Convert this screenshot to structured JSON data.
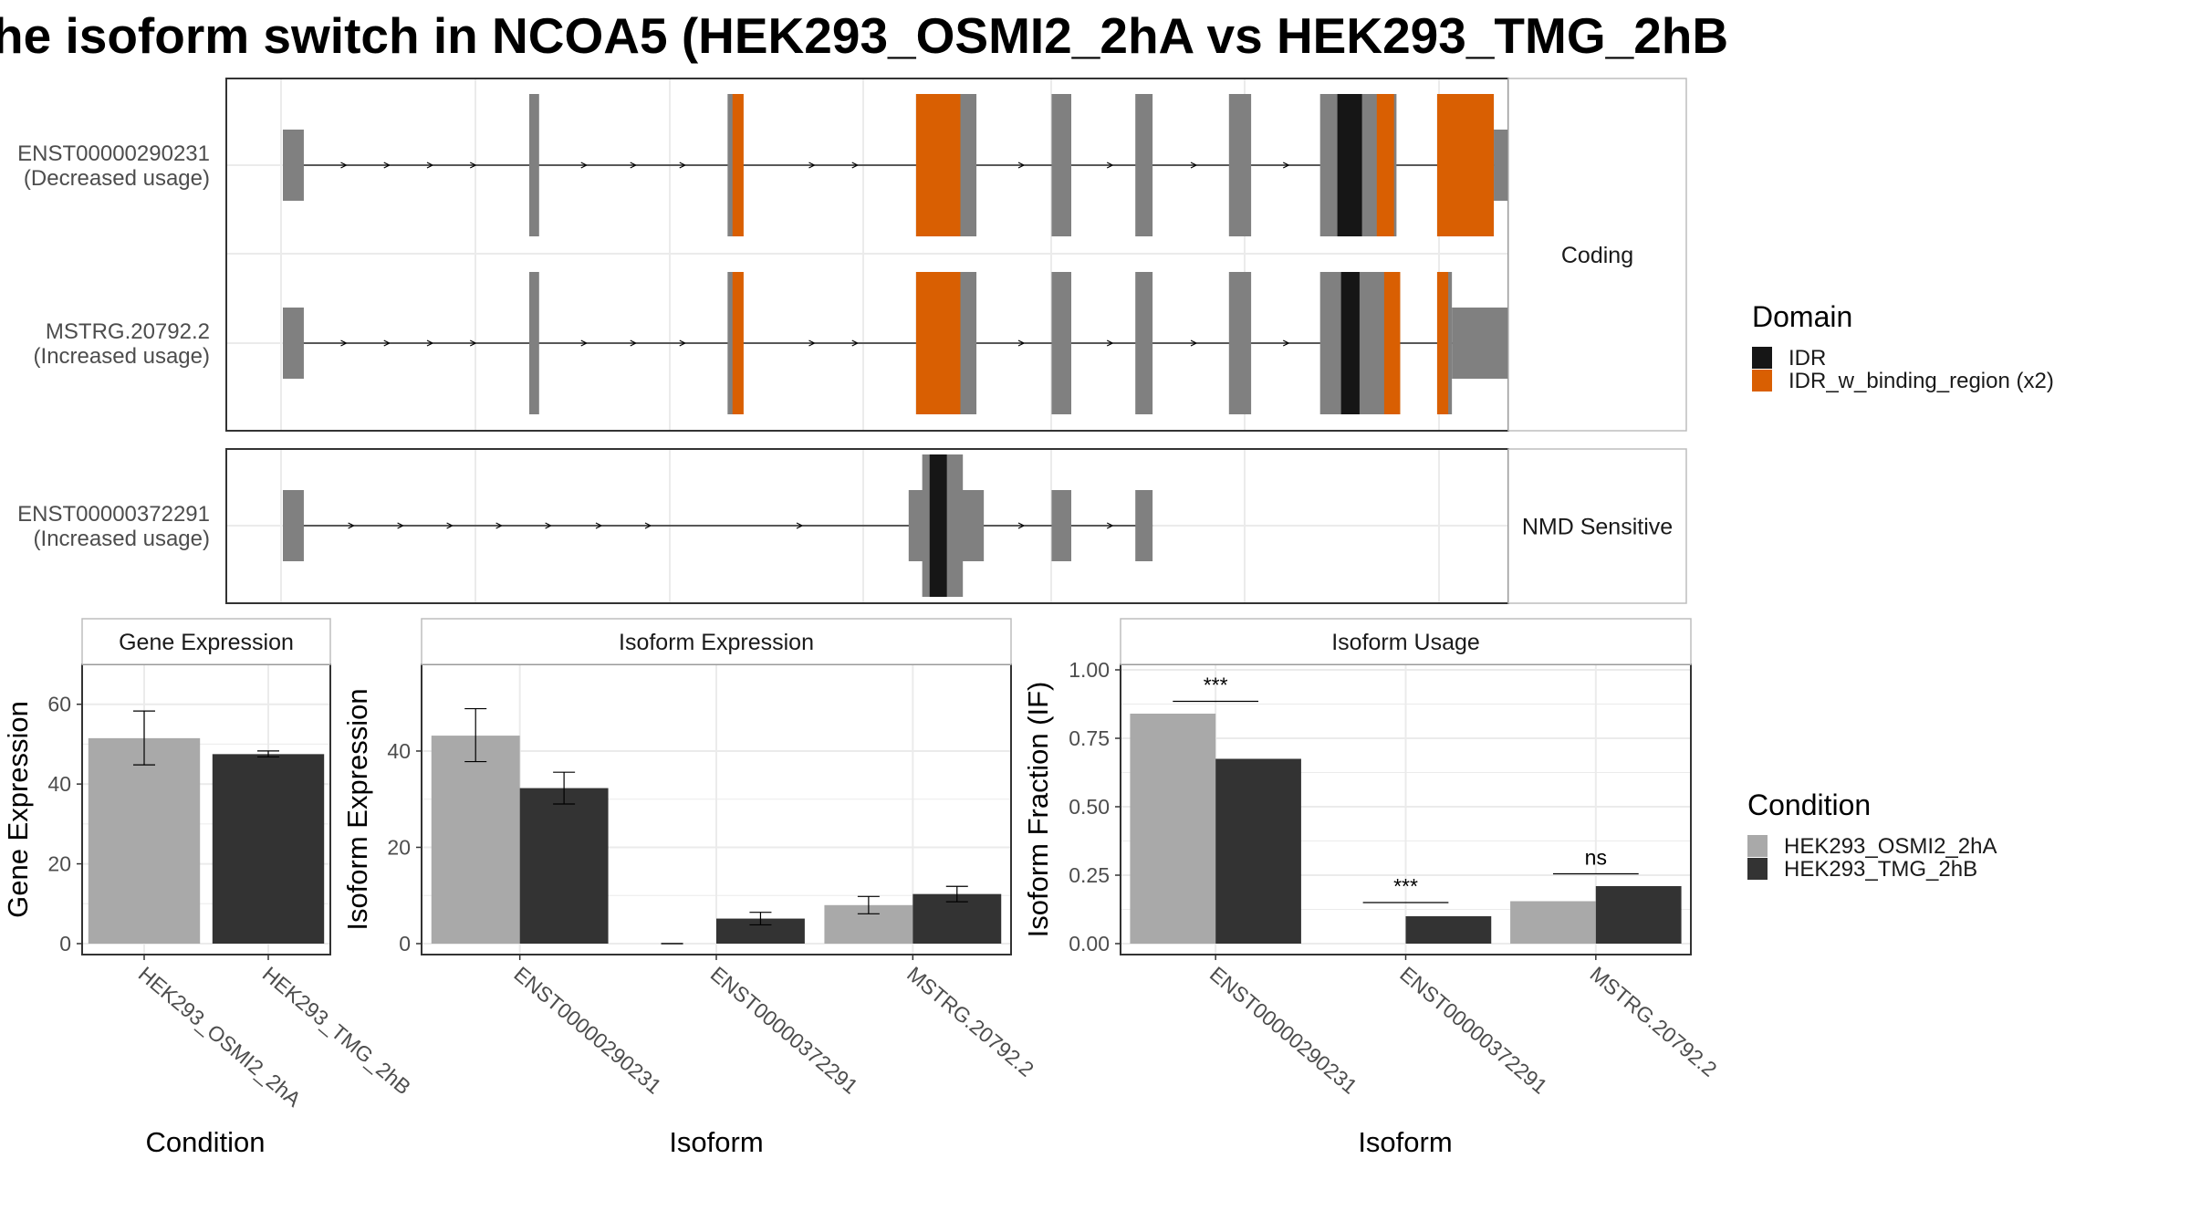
{
  "title": "he isoform switch in NCOA5 (HEK293_OSMI2_2hA vs HEK293_TMG_2hB",
  "colors": {
    "exon": "#808080",
    "idr": "#161616",
    "idr_binding": "#d95f02",
    "cond_a": "#a9a9a9",
    "cond_b": "#333333",
    "panel_border": "#333333",
    "grid": "#ebebeb",
    "strip_bg": "#ffffff"
  },
  "structure": {
    "facets": [
      {
        "label": "Coding",
        "transcripts": [
          {
            "name": "ENST00000290231",
            "usage": "(Decreased usage)",
            "tall": [
              [
                200,
                208
              ],
              [
                361,
                372
              ],
              [
                514,
                563
              ],
              [
                624,
                640
              ],
              [
                692,
                706
              ],
              [
                768,
                786
              ],
              [
                842,
                904
              ],
              [
                937,
                983
              ]
            ],
            "short": [
              [
                0,
                17
              ],
              [
                983,
                1052
              ]
            ],
            "domains": [
              {
                "type": "idr_binding",
                "start": 365,
                "end": 374
              },
              {
                "type": "idr_binding",
                "start": 514,
                "end": 550
              },
              {
                "type": "idr",
                "start": 856,
                "end": 876
              },
              {
                "type": "idr_binding",
                "start": 888,
                "end": 902
              },
              {
                "type": "idr_binding",
                "start": 937,
                "end": 983
              }
            ],
            "arrows": [
              50,
              85,
              120,
              155,
              245,
              285,
              325,
              430,
              465,
              600,
              672,
              740,
              815
            ]
          },
          {
            "name": "MSTRG.20792.2",
            "usage": "(Increased usage)",
            "tall": [
              [
                200,
                208
              ],
              [
                361,
                372
              ],
              [
                514,
                563
              ],
              [
                624,
                640
              ],
              [
                692,
                706
              ],
              [
                768,
                786
              ],
              [
                842,
                907
              ],
              [
                937,
                949
              ]
            ],
            "short": [
              [
                0,
                17
              ],
              [
                949,
                1030
              ]
            ],
            "domains": [
              {
                "type": "idr_binding",
                "start": 365,
                "end": 374
              },
              {
                "type": "idr_binding",
                "start": 514,
                "end": 550
              },
              {
                "type": "idr",
                "start": 859,
                "end": 874
              },
              {
                "type": "idr_binding",
                "start": 894,
                "end": 907
              },
              {
                "type": "idr_binding",
                "start": 937,
                "end": 946
              }
            ],
            "arrows": [
              50,
              85,
              120,
              155,
              245,
              285,
              325,
              430,
              465,
              600,
              672,
              740,
              815
            ]
          }
        ]
      },
      {
        "label": "NMD Sensitive",
        "transcripts": [
          {
            "name": "ENST00000372291",
            "usage": "(Increased usage)",
            "tall": [
              [
                519,
                552
              ]
            ],
            "short": [
              [
                0,
                17
              ],
              [
                508,
                569
              ],
              [
                624,
                640
              ],
              [
                692,
                706
              ]
            ],
            "domains": [
              {
                "type": "idr",
                "start": 525,
                "end": 539
              }
            ],
            "arrows": [
              56,
              96,
              136,
              176,
              216,
              257,
              297,
              420,
              600,
              672
            ]
          }
        ]
      }
    ]
  },
  "legend_domain": {
    "title": "Domain",
    "items": [
      {
        "label": "IDR",
        "color": "#161616"
      },
      {
        "label": "IDR_w_binding_region (x2)",
        "color": "#d95f02"
      }
    ]
  },
  "legend_condition": {
    "title": "Condition",
    "items": [
      {
        "label": "HEK293_OSMI2_2hA",
        "color": "#a9a9a9"
      },
      {
        "label": "HEK293_TMG_2hB",
        "color": "#333333"
      }
    ]
  },
  "chart_data": [
    {
      "type": "bar",
      "title": "Gene Expression",
      "xlabel": "Condition",
      "ylabel": "Gene Expression",
      "ylim": [
        0,
        70
      ],
      "yticks": [
        0,
        20,
        40,
        60
      ],
      "categories": [
        "HEK293_OSMI2_2hA",
        "HEK293_TMG_2hB"
      ],
      "values": [
        51.5,
        47.5
      ],
      "errors": [
        [
          44.8,
          58.3
        ],
        [
          46.8,
          48.3
        ]
      ],
      "colors": [
        "#a9a9a9",
        "#333333"
      ]
    },
    {
      "type": "bar",
      "title": "Isoform Expression",
      "xlabel": "Isoform",
      "ylabel": "Isoform Expression",
      "ylim": [
        0,
        58
      ],
      "yticks": [
        0,
        20,
        40
      ],
      "categories": [
        "ENST00000290231",
        "ENST00000372291",
        "MSTRG.20792.2"
      ],
      "series": [
        {
          "name": "HEK293_OSMI2_2hA",
          "values": [
            43.2,
            0,
            8.0
          ],
          "errors": [
            [
              37.8,
              48.8
            ],
            [
              0,
              0
            ],
            [
              6.2,
              9.8
            ]
          ]
        },
        {
          "name": "HEK293_TMG_2hB",
          "values": [
            32.3,
            5.2,
            10.3
          ],
          "errors": [
            [
              29.0,
              35.6
            ],
            [
              3.9,
              6.5
            ],
            [
              8.7,
              11.9
            ]
          ]
        }
      ]
    },
    {
      "type": "bar",
      "title": "Isoform Usage",
      "xlabel": "Isoform",
      "ylabel": "Isoform Fraction (IF)",
      "ylim": [
        0,
        1.02
      ],
      "yticks": [
        "0.00",
        "0.25",
        "0.50",
        "0.75",
        "1.00"
      ],
      "categories": [
        "ENST00000290231",
        "ENST00000372291",
        "MSTRG.20792.2"
      ],
      "series": [
        {
          "name": "HEK293_OSMI2_2hA",
          "values": [
            0.84,
            0,
            0.155
          ]
        },
        {
          "name": "HEK293_TMG_2hB",
          "values": [
            0.675,
            0.1,
            0.21
          ]
        }
      ],
      "significance": [
        {
          "label": "***",
          "y": 0.885
        },
        {
          "label": "***",
          "y": 0.15
        },
        {
          "label": "ns",
          "y": 0.255
        }
      ]
    }
  ]
}
